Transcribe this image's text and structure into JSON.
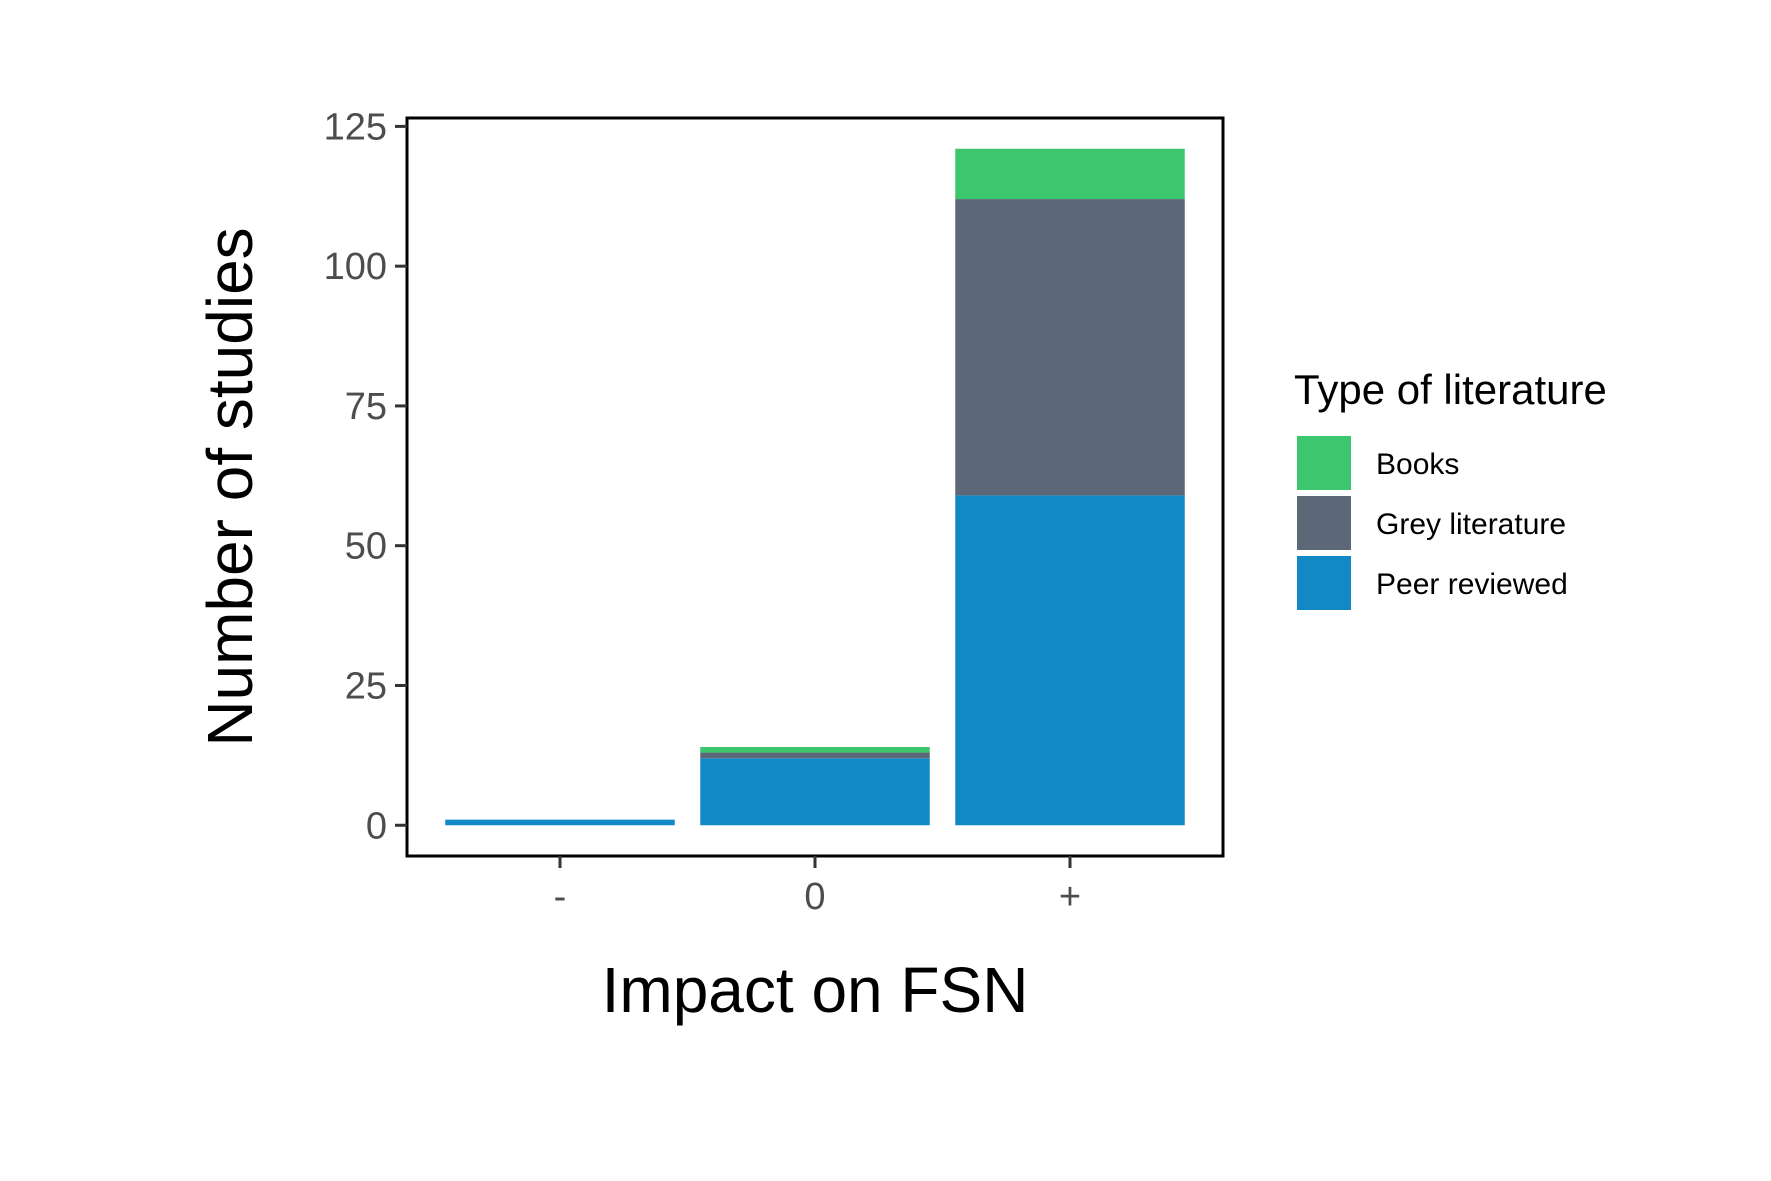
{
  "chart_data": {
    "type": "bar",
    "stacked": true,
    "categories": [
      "-",
      "0",
      "+"
    ],
    "series": [
      {
        "name": "Peer reviewed",
        "color": "#1289C5",
        "values": [
          1,
          12,
          59
        ]
      },
      {
        "name": "Grey literature",
        "color": "#5C6877",
        "values": [
          0,
          1,
          53
        ]
      },
      {
        "name": "Books",
        "color": "#3CC66D",
        "values": [
          0,
          1,
          9
        ]
      }
    ],
    "legend_order": [
      "Books",
      "Grey literature",
      "Peer reviewed"
    ],
    "title": "",
    "xlabel": "Impact on FSN",
    "ylabel": "Number of studies",
    "legend_title": "Type of literature",
    "ylim": [
      -5.5,
      126.5
    ],
    "yticks": [
      0,
      25,
      50,
      75,
      100,
      125
    ],
    "grid": false,
    "legend_position": "right"
  }
}
